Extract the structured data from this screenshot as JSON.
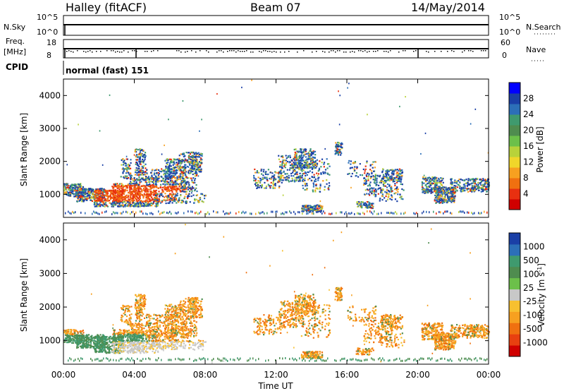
{
  "header": {
    "station": "Halley (fitACF)",
    "beam": "Beam 07",
    "date": "14/May/2014"
  },
  "panels": {
    "sky": {
      "left_label": "N.Sky",
      "right_label": "N.Search",
      "ticks_left": [
        "10^5",
        "10^0"
      ],
      "ticks_right": [
        "10^5",
        "10^0"
      ]
    },
    "freq": {
      "left_label_1": "Freq.",
      "left_label_2": "[MHz]",
      "ticks_left": [
        "18",
        "8"
      ],
      "ticks_right": [
        "60",
        "0"
      ],
      "right_label": "Nave"
    },
    "cpid": {
      "label": "CPID",
      "mode_text": "normal (fast) 151"
    }
  },
  "chart_data": [
    {
      "type": "heatmap",
      "name": "power",
      "ylabel": "Slant Range [km]",
      "yticks": [
        "4000",
        "3000",
        "2000",
        "1000"
      ],
      "ylim": [
        300,
        4500
      ],
      "colorbar_label": "Power [dB]",
      "colorbar_ticks": [
        "28",
        "24",
        "20",
        "16",
        "12",
        "8",
        "4"
      ],
      "colorbar_range": [
        0,
        30
      ],
      "colors": [
        "#0000ff",
        "#1a3fa6",
        "#2c6fb8",
        "#3f9a6e",
        "#4f8c4f",
        "#6cc04a",
        "#b8d23a",
        "#f0d62a",
        "#f7a020",
        "#f07010",
        "#e83010",
        "#d00000"
      ]
    },
    {
      "type": "heatmap",
      "name": "velocity",
      "ylabel": "Slant Range [km]",
      "yticks": [
        "4000",
        "3000",
        "2000",
        "1000"
      ],
      "ylim": [
        300,
        4500
      ],
      "colorbar_label": "Velocity [m s",
      "colorbar_label_sup": "-1",
      "colorbar_label_end": "]",
      "colorbar_ticks": [
        "1000",
        "500",
        "100",
        "25",
        "-25",
        "-100",
        "-500",
        "-1000"
      ],
      "colors": [
        "#1a3fa6",
        "#2c6fb8",
        "#3f9a6e",
        "#4f8c4f",
        "#6cc04a",
        "#c8c8c8",
        "#f7c030",
        "#f7a020",
        "#f07010",
        "#e84010",
        "#d00000"
      ],
      "ground_scatter_color": "#c8c8c8"
    }
  ],
  "xaxis": {
    "ticks": [
      "00:00",
      "04:00",
      "08:00",
      "12:00",
      "16:00",
      "20:00",
      "00:00"
    ],
    "label": "Time UT"
  }
}
